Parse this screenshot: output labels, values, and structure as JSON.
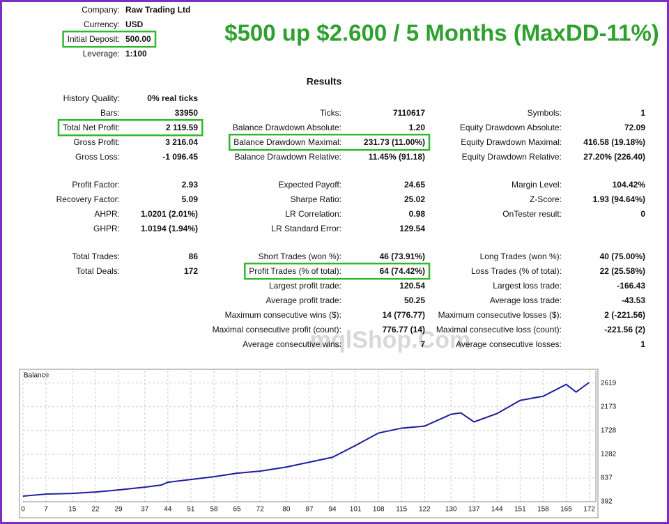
{
  "header": {
    "rows": [
      {
        "label": "Company:",
        "value": "Raw Trading Ltd"
      },
      {
        "label": "Currency:",
        "value": "USD"
      },
      {
        "label": "Initial Deposit:",
        "value": "500.00",
        "highlight": true
      },
      {
        "label": "Leverage:",
        "value": "1:100"
      }
    ],
    "headline": "$500 up $2.600 / 5 Months (MaxDD-11%)"
  },
  "results": {
    "title": "Results",
    "sections": [
      [
        {
          "left": {
            "label": "History Quality:",
            "value": "0% real ticks"
          }
        },
        {
          "left": {
            "label": "Bars:",
            "value": "33950"
          },
          "middle": {
            "label": "Ticks:",
            "value": "7110617"
          },
          "right": {
            "label": "Symbols:",
            "value": "1"
          }
        },
        {
          "left": {
            "label": "Total Net Profit:",
            "value": "2 119.59",
            "highlight": true
          },
          "middle": {
            "label": "Balance Drawdown Absolute:",
            "value": "1.20"
          },
          "right": {
            "label": "Equity Drawdown Absolute:",
            "value": "72.09"
          }
        },
        {
          "left": {
            "label": "Gross Profit:",
            "value": "3 216.04"
          },
          "middle": {
            "label": "Balance Drawdown Maximal:",
            "value": "231.73 (11.00%)",
            "highlight": true
          },
          "right": {
            "label": "Equity Drawdown Maximal:",
            "value": "416.58 (19.18%)"
          }
        },
        {
          "left": {
            "label": "Gross Loss:",
            "value": "-1 096.45"
          },
          "middle": {
            "label": "Balance Drawdown Relative:",
            "value": "11.45% (91.18)"
          },
          "right": {
            "label": "Equity Drawdown Relative:",
            "value": "27.20% (226.40)"
          }
        }
      ],
      [
        {
          "left": {
            "label": "Profit Factor:",
            "value": "2.93"
          },
          "middle": {
            "label": "Expected Payoff:",
            "value": "24.65"
          },
          "right": {
            "label": "Margin Level:",
            "value": "104.42%"
          }
        },
        {
          "left": {
            "label": "Recovery Factor:",
            "value": "5.09"
          },
          "middle": {
            "label": "Sharpe Ratio:",
            "value": "25.02"
          },
          "right": {
            "label": "Z-Score:",
            "value": "1.93 (94.64%)"
          }
        },
        {
          "left": {
            "label": "AHPR:",
            "value": "1.0201 (2.01%)"
          },
          "middle": {
            "label": "LR Correlation:",
            "value": "0.98"
          },
          "right": {
            "label": "OnTester result:",
            "value": "0"
          }
        },
        {
          "left": {
            "label": "GHPR:",
            "value": "1.0194 (1.94%)"
          },
          "middle": {
            "label": "LR Standard Error:",
            "value": "129.54"
          }
        }
      ],
      [
        {
          "left": {
            "label": "Total Trades:",
            "value": "86"
          },
          "middle": {
            "label": "Short Trades (won %):",
            "value": "46 (73.91%)"
          },
          "right": {
            "label": "Long Trades (won %):",
            "value": "40 (75.00%)"
          }
        },
        {
          "left": {
            "label": "Total Deals:",
            "value": "172"
          },
          "middle": {
            "label": "Profit Trades (% of total):",
            "value": "64 (74.42%)",
            "highlight": true
          },
          "right": {
            "label": "Loss Trades (% of total):",
            "value": "22 (25.58%)"
          }
        },
        {
          "middle": {
            "label": "Largest profit trade:",
            "value": "120.54"
          },
          "right": {
            "label": "Largest loss trade:",
            "value": "-166.43"
          }
        },
        {
          "middle": {
            "label": "Average profit trade:",
            "value": "50.25"
          },
          "right": {
            "label": "Average loss trade:",
            "value": "-43.53"
          }
        },
        {
          "middle": {
            "label": "Maximum consecutive wins ($):",
            "value": "14 (776.77)"
          },
          "right": {
            "label": "Maximum consecutive losses ($):",
            "value": "2 (-221.56)"
          }
        },
        {
          "middle": {
            "label": "Maximal consecutive profit (count):",
            "value": "776.77 (14)"
          },
          "right": {
            "label": "Maximal consecutive loss (count):",
            "value": "-221.56 (2)"
          }
        },
        {
          "middle": {
            "label": "Average consecutive wins:",
            "value": "7"
          },
          "right": {
            "label": "Average consecutive losses:",
            "value": "1"
          }
        }
      ]
    ]
  },
  "watermark": "mqlShop.Com",
  "chart_data": {
    "type": "line",
    "title": "Balance",
    "color": "#1c1ca0",
    "grid": true,
    "x": [
      0,
      7,
      15,
      22,
      29,
      37,
      42,
      44,
      51,
      58,
      65,
      72,
      80,
      87,
      94,
      101,
      108,
      115,
      122,
      130,
      133,
      137,
      144,
      151,
      158,
      165,
      168,
      172
    ],
    "values": [
      496,
      535,
      548,
      574,
      613,
      665,
      704,
      757,
      809,
      861,
      926,
      965,
      1043,
      1134,
      1225,
      1447,
      1681,
      1772,
      1811,
      2032,
      2059,
      1889,
      2046,
      2293,
      2371,
      2592,
      2449,
      2631
    ],
    "xlim": [
      0,
      174
    ],
    "ylim": [
      392,
      2850
    ],
    "xticks": [
      0,
      7,
      15,
      22,
      29,
      37,
      44,
      51,
      58,
      65,
      72,
      80,
      87,
      94,
      101,
      108,
      115,
      122,
      130,
      137,
      144,
      151,
      158,
      165,
      172
    ],
    "yticks": [
      392,
      837,
      1282,
      1728,
      2173,
      2619
    ]
  }
}
